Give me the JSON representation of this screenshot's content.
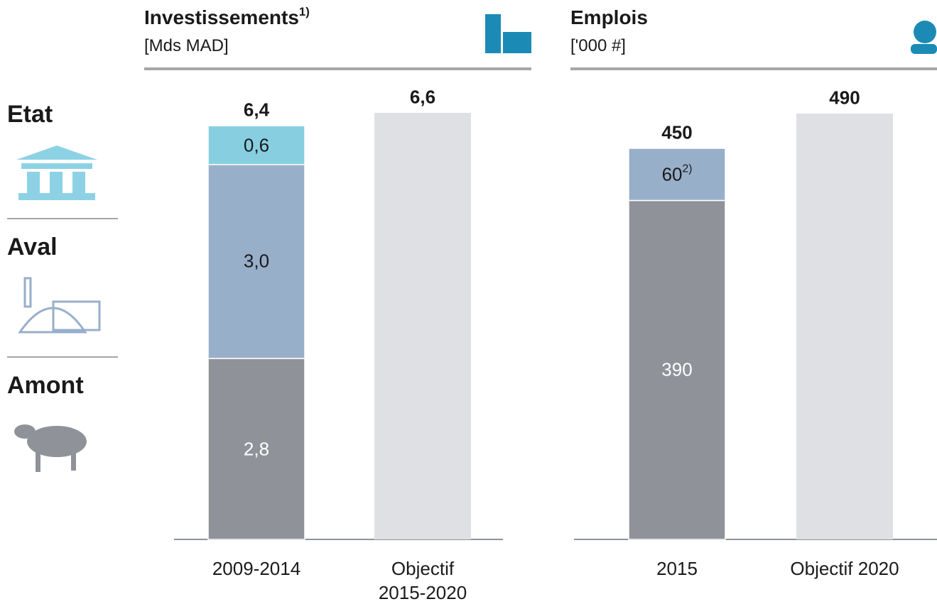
{
  "chart_data": [
    {
      "type": "stacked_bar",
      "title": "Investissements",
      "title_note": "1)",
      "subtitle": "[Mds MAD]",
      "categories": [
        "2009-2014",
        "Objectif 2015-2020"
      ],
      "series": [
        {
          "name": "Amont",
          "color": "#8f9399",
          "label_color": "#ffffff",
          "values": [
            2.8,
            null
          ],
          "value_labels": [
            "2,8",
            null
          ]
        },
        {
          "name": "Aval",
          "color": "#98afca",
          "label_color": "#1a1a1a",
          "values": [
            3.0,
            null
          ],
          "value_labels": [
            "3,0",
            null
          ]
        },
        {
          "name": "Etat",
          "color": "#87cfe0",
          "label_color": "#1a1a1a",
          "values": [
            0.6,
            null
          ],
          "value_labels": [
            "0,6",
            null
          ]
        }
      ],
      "totals": {
        "color": "#dfe0e3",
        "values": [
          6.4,
          6.6
        ],
        "value_labels": [
          "6,4",
          "6,6"
        ]
      }
    },
    {
      "type": "stacked_bar",
      "title": "Emplois",
      "subtitle": "['000 #]",
      "categories": [
        "2015",
        "Objectif 2020"
      ],
      "series": [
        {
          "name": "Amont",
          "color": "#8f9399",
          "label_color": "#ffffff",
          "values": [
            390,
            null
          ]
        },
        {
          "name": "Aval",
          "color": "#98afca",
          "label_color": "#1a1a1a",
          "values": [
            60,
            null
          ],
          "value_label_notes": [
            "2)",
            null
          ]
        }
      ],
      "totals": {
        "color": "#dfe0e3",
        "values": [
          450,
          490
        ]
      }
    }
  ]
}
